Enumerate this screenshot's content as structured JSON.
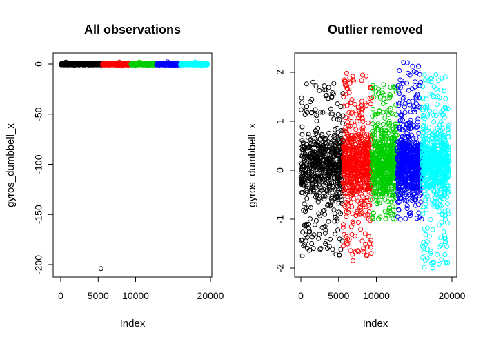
{
  "chart_data": [
    {
      "type": "scatter",
      "title": "All observations",
      "xlabel": "Index",
      "ylabel": "gyros_dumbbell_x",
      "xlim": [
        0,
        20000
      ],
      "ylim": [
        -210,
        5
      ],
      "x_ticks": [
        0,
        5000,
        10000,
        20000
      ],
      "x_tick_labels": [
        "0",
        "5000",
        "10000",
        "20000"
      ],
      "y_ticks": [
        0,
        -50,
        -100,
        -150,
        -200
      ],
      "y_tick_labels": [
        "0",
        "-50",
        "-100",
        "-150",
        "-200"
      ],
      "marker": "open circle",
      "series": [
        {
          "color": "#000000",
          "x_range": [
            1,
            5580
          ],
          "y_range": [
            -2,
            2
          ]
        },
        {
          "color": "#ff0000",
          "x_range": [
            5580,
            9377
          ],
          "y_range": [
            -2,
            2
          ]
        },
        {
          "color": "#00cd00",
          "x_range": [
            9377,
            12800
          ],
          "y_range": [
            -1,
            2
          ]
        },
        {
          "color": "#0000ff",
          "x_range": [
            12800,
            16016
          ],
          "y_range": [
            -1,
            2.2
          ]
        },
        {
          "color": "#00ffff",
          "x_range": [
            16016,
            19622
          ],
          "y_range": [
            -2,
            2
          ]
        }
      ],
      "outliers": [
        {
          "x": 5373,
          "y": -204
        }
      ]
    },
    {
      "type": "scatter",
      "title": "Outlier removed",
      "xlabel": "Index",
      "ylabel": "gyros_dumbbell_x",
      "xlim": [
        0,
        20000
      ],
      "ylim": [
        -2,
        2.2
      ],
      "x_ticks": [
        0,
        5000,
        10000,
        20000
      ],
      "x_tick_labels": [
        "0",
        "5000",
        "10000",
        "20000"
      ],
      "y_ticks": [
        -2,
        -1,
        0,
        1,
        2
      ],
      "y_tick_labels": [
        "-2",
        "-1",
        "0",
        "1",
        "2"
      ],
      "marker": "open circle",
      "series": [
        {
          "color": "#000000",
          "x_range": [
            1,
            5580
          ],
          "y_range": [
            -1.75,
            1.8
          ]
        },
        {
          "color": "#ff0000",
          "x_range": [
            5580,
            9377
          ],
          "y_range": [
            -1.85,
            1.98
          ]
        },
        {
          "color": "#00cd00",
          "x_range": [
            9377,
            12800
          ],
          "y_range": [
            -1.0,
            1.75
          ]
        },
        {
          "color": "#0000ff",
          "x_range": [
            12800,
            16016
          ],
          "y_range": [
            -1.0,
            2.2
          ]
        },
        {
          "color": "#00ffff",
          "x_range": [
            16016,
            19622
          ],
          "y_range": [
            -2.0,
            1.95
          ]
        }
      ]
    }
  ]
}
